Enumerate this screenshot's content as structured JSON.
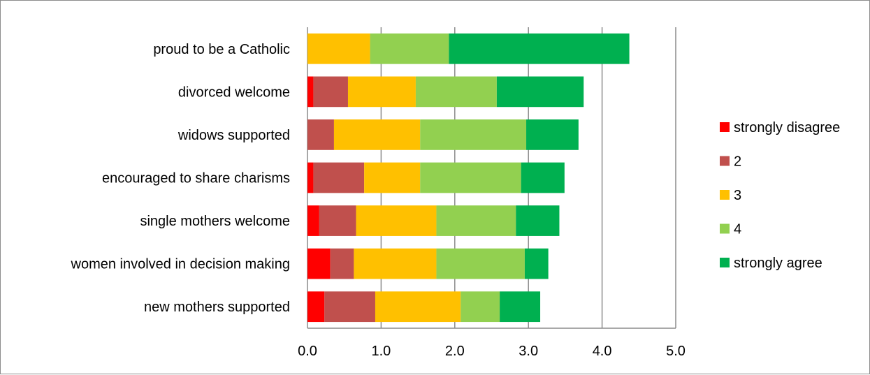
{
  "chart_data": {
    "type": "bar",
    "orientation": "horizontal",
    "stacked": true,
    "categories": [
      "proud to be a Catholic",
      "divorced welcome",
      "widows supported",
      "encouraged to share charisms",
      "single mothers welcome",
      "women involved in decision making",
      "new mothers supported"
    ],
    "series": [
      {
        "name": "strongly disagree",
        "color": "#ff0000",
        "values": [
          0.0,
          0.08,
          0.0,
          0.08,
          0.16,
          0.31,
          0.23
        ]
      },
      {
        "name": "2",
        "color": "#c0504d",
        "values": [
          0.0,
          0.47,
          0.36,
          0.69,
          0.5,
          0.32,
          0.69
        ]
      },
      {
        "name": "3",
        "color": "#ffc000",
        "values": [
          0.85,
          0.92,
          1.17,
          0.76,
          1.09,
          1.12,
          1.16
        ]
      },
      {
        "name": "4",
        "color": "#92d050",
        "values": [
          1.07,
          1.1,
          1.44,
          1.37,
          1.08,
          1.2,
          0.53
        ]
      },
      {
        "name": "strongly agree",
        "color": "#00b050",
        "values": [
          2.45,
          1.18,
          0.71,
          0.59,
          0.59,
          0.32,
          0.55
        ]
      }
    ],
    "xlim": [
      0,
      5
    ],
    "xticks": [
      "0.0",
      "1.0",
      "2.0",
      "3.0",
      "4.0",
      "5.0"
    ],
    "grid": "vertical",
    "legend": "right",
    "title": "",
    "xlabel": "",
    "ylabel": ""
  }
}
